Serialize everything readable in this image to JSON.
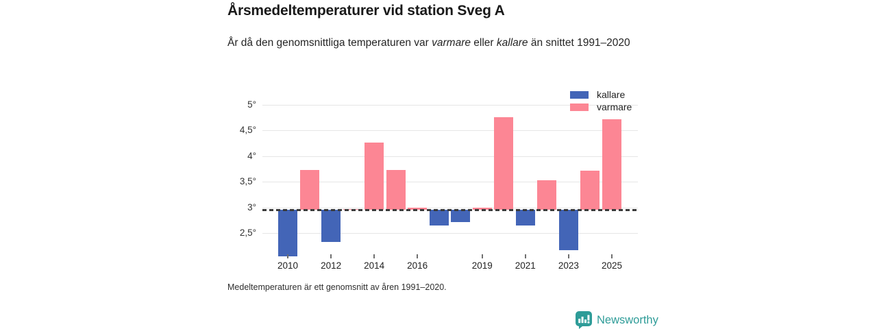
{
  "header": {
    "title": "Årsmedeltemperaturer vid station Sveg A",
    "subtitle_segments": [
      {
        "text": "År då den genomsnittliga temperaturen var ",
        "italic": false
      },
      {
        "text": "varmare",
        "italic": true
      },
      {
        "text": " eller ",
        "italic": false
      },
      {
        "text": "kallare",
        "italic": true
      },
      {
        "text": " än snittet 1991–2020",
        "italic": false
      }
    ]
  },
  "chart_data": {
    "type": "bar",
    "title": "Årsmedeltemperaturer vid station Sveg A",
    "subtitle": "År då den genomsnittliga temperaturen var varmare eller kallare än snittet 1991–2020",
    "unit": "°C",
    "grid": true,
    "legend_position": "top-right",
    "ylim": [
      2.0,
      5.15
    ],
    "baseline": {
      "value": 2.95,
      "meaning": "medeltemperatur 1991–2020"
    },
    "points": [
      {
        "year": 2010,
        "value": 2.05,
        "group": "kallare"
      },
      {
        "year": 2011,
        "value": 3.73,
        "group": "varmare"
      },
      {
        "year": 2012,
        "value": 2.33,
        "group": "kallare"
      },
      {
        "year": 2013,
        "value": 2.97,
        "group": "varmare"
      },
      {
        "year": 2014,
        "value": 4.26,
        "group": "varmare"
      },
      {
        "year": 2015,
        "value": 3.73,
        "group": "varmare"
      },
      {
        "year": 2016,
        "value": 3.0,
        "group": "varmare"
      },
      {
        "year": 2017,
        "value": 2.64,
        "group": "kallare"
      },
      {
        "year": 2018,
        "value": 2.71,
        "group": "kallare"
      },
      {
        "year": 2019,
        "value": 3.0,
        "group": "varmare"
      },
      {
        "year": 2020,
        "value": 4.76,
        "group": "varmare"
      },
      {
        "year": 2021,
        "value": 2.65,
        "group": "kallare"
      },
      {
        "year": 2022,
        "value": 3.53,
        "group": "varmare"
      },
      {
        "year": 2023,
        "value": 2.17,
        "group": "kallare"
      },
      {
        "year": 2024,
        "value": 3.72,
        "group": "varmare"
      },
      {
        "year": 2025,
        "value": 4.72,
        "group": "varmare"
      }
    ],
    "yticks": [
      {
        "label": "5°",
        "value": 5
      },
      {
        "label": "4,5°",
        "value": 4.5
      },
      {
        "label": "4°",
        "value": 4
      },
      {
        "label": "3,5°",
        "value": 3.5
      },
      {
        "label": "3°",
        "value": 3
      },
      {
        "label": "2,5°",
        "value": 2.5
      }
    ],
    "xticks": [
      2010,
      2012,
      2014,
      2016,
      2019,
      2021,
      2023,
      2025
    ],
    "legend": [
      {
        "label": "kallare",
        "color": "#4365B7"
      },
      {
        "label": "varmare",
        "color": "#FC8694"
      }
    ],
    "colors": {
      "kallare": "#4365B7",
      "varmare": "#FC8694",
      "baseline_line": "#3A3A3A",
      "gridline": "#E6E6E6"
    }
  },
  "footnote": "Medeltemperaturen är ett genomsnitt av åren 1991–2020.",
  "branding": {
    "name": "Newsworthy",
    "color": "#2E9C98",
    "icon": "newsworthy-speech-bubble-barchart-icon"
  }
}
